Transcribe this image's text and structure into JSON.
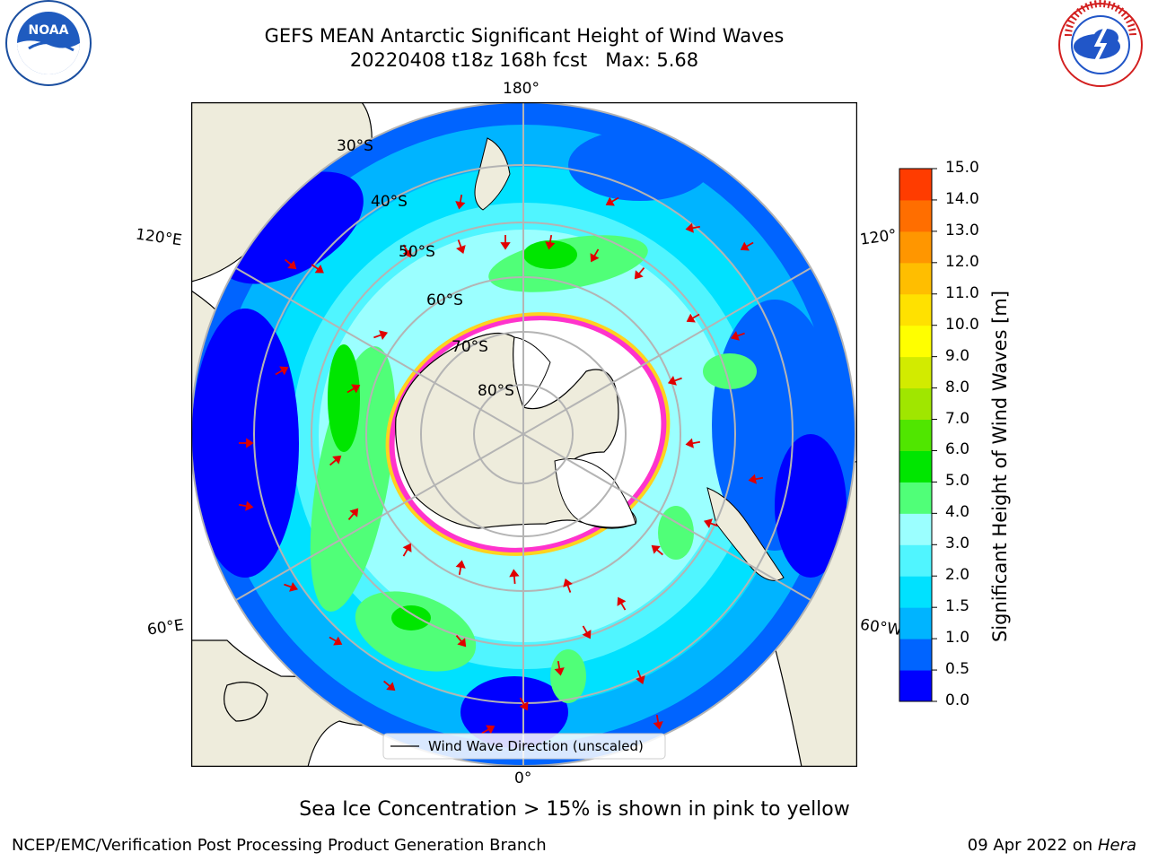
{
  "title": {
    "line1": "GEFS MEAN Antarctic Significant Height of Wind Waves",
    "line2": "20220408 t18z 168h fcst   Max: 5.68"
  },
  "logos": {
    "left": "NOAA",
    "right": "NATIONAL WEATHER SERVICE"
  },
  "map": {
    "projection": "south-polar-stereographic",
    "longitude_labels": [
      "180°",
      "120°E",
      "120°",
      "60°E",
      "60°W",
      "0°"
    ],
    "latitude_labels": [
      "30°S",
      "40°S",
      "50°S",
      "60°S",
      "70°S",
      "80°S"
    ],
    "legend_label": "Wind Wave Direction (unscaled)",
    "colors": {
      "land": "#eeecdc",
      "ice_pink": "#ff33cc",
      "ice_yellow": "#ffd21e",
      "arrow": "#e00000",
      "grid": "#b4b4b4"
    }
  },
  "colorbar": {
    "label": "Significant Height of Wind Waves [m]",
    "ticks": [
      "0.0",
      "0.5",
      "1.0",
      "1.5",
      "2.0",
      "3.0",
      "4.0",
      "5.0",
      "6.0",
      "7.0",
      "8.0",
      "9.0",
      "10.0",
      "11.0",
      "12.0",
      "13.0",
      "14.0",
      "15.0"
    ],
    "colors": [
      "#0000ff",
      "#0064ff",
      "#00b4ff",
      "#00e1ff",
      "#50f5ff",
      "#9bffff",
      "#50ff78",
      "#00e600",
      "#50e600",
      "#a0e600",
      "#d2eb00",
      "#ffff00",
      "#ffe100",
      "#ffbe00",
      "#ff9600",
      "#ff6e00",
      "#ff3c00"
    ]
  },
  "caption": "Sea Ice Concentration > 15% is shown in pink to yellow",
  "footer": {
    "left": "NCEP/EMC/Verification Post Processing Product Generation Branch",
    "right_prefix": "09 Apr 2022 on ",
    "right_host": "Hera"
  }
}
